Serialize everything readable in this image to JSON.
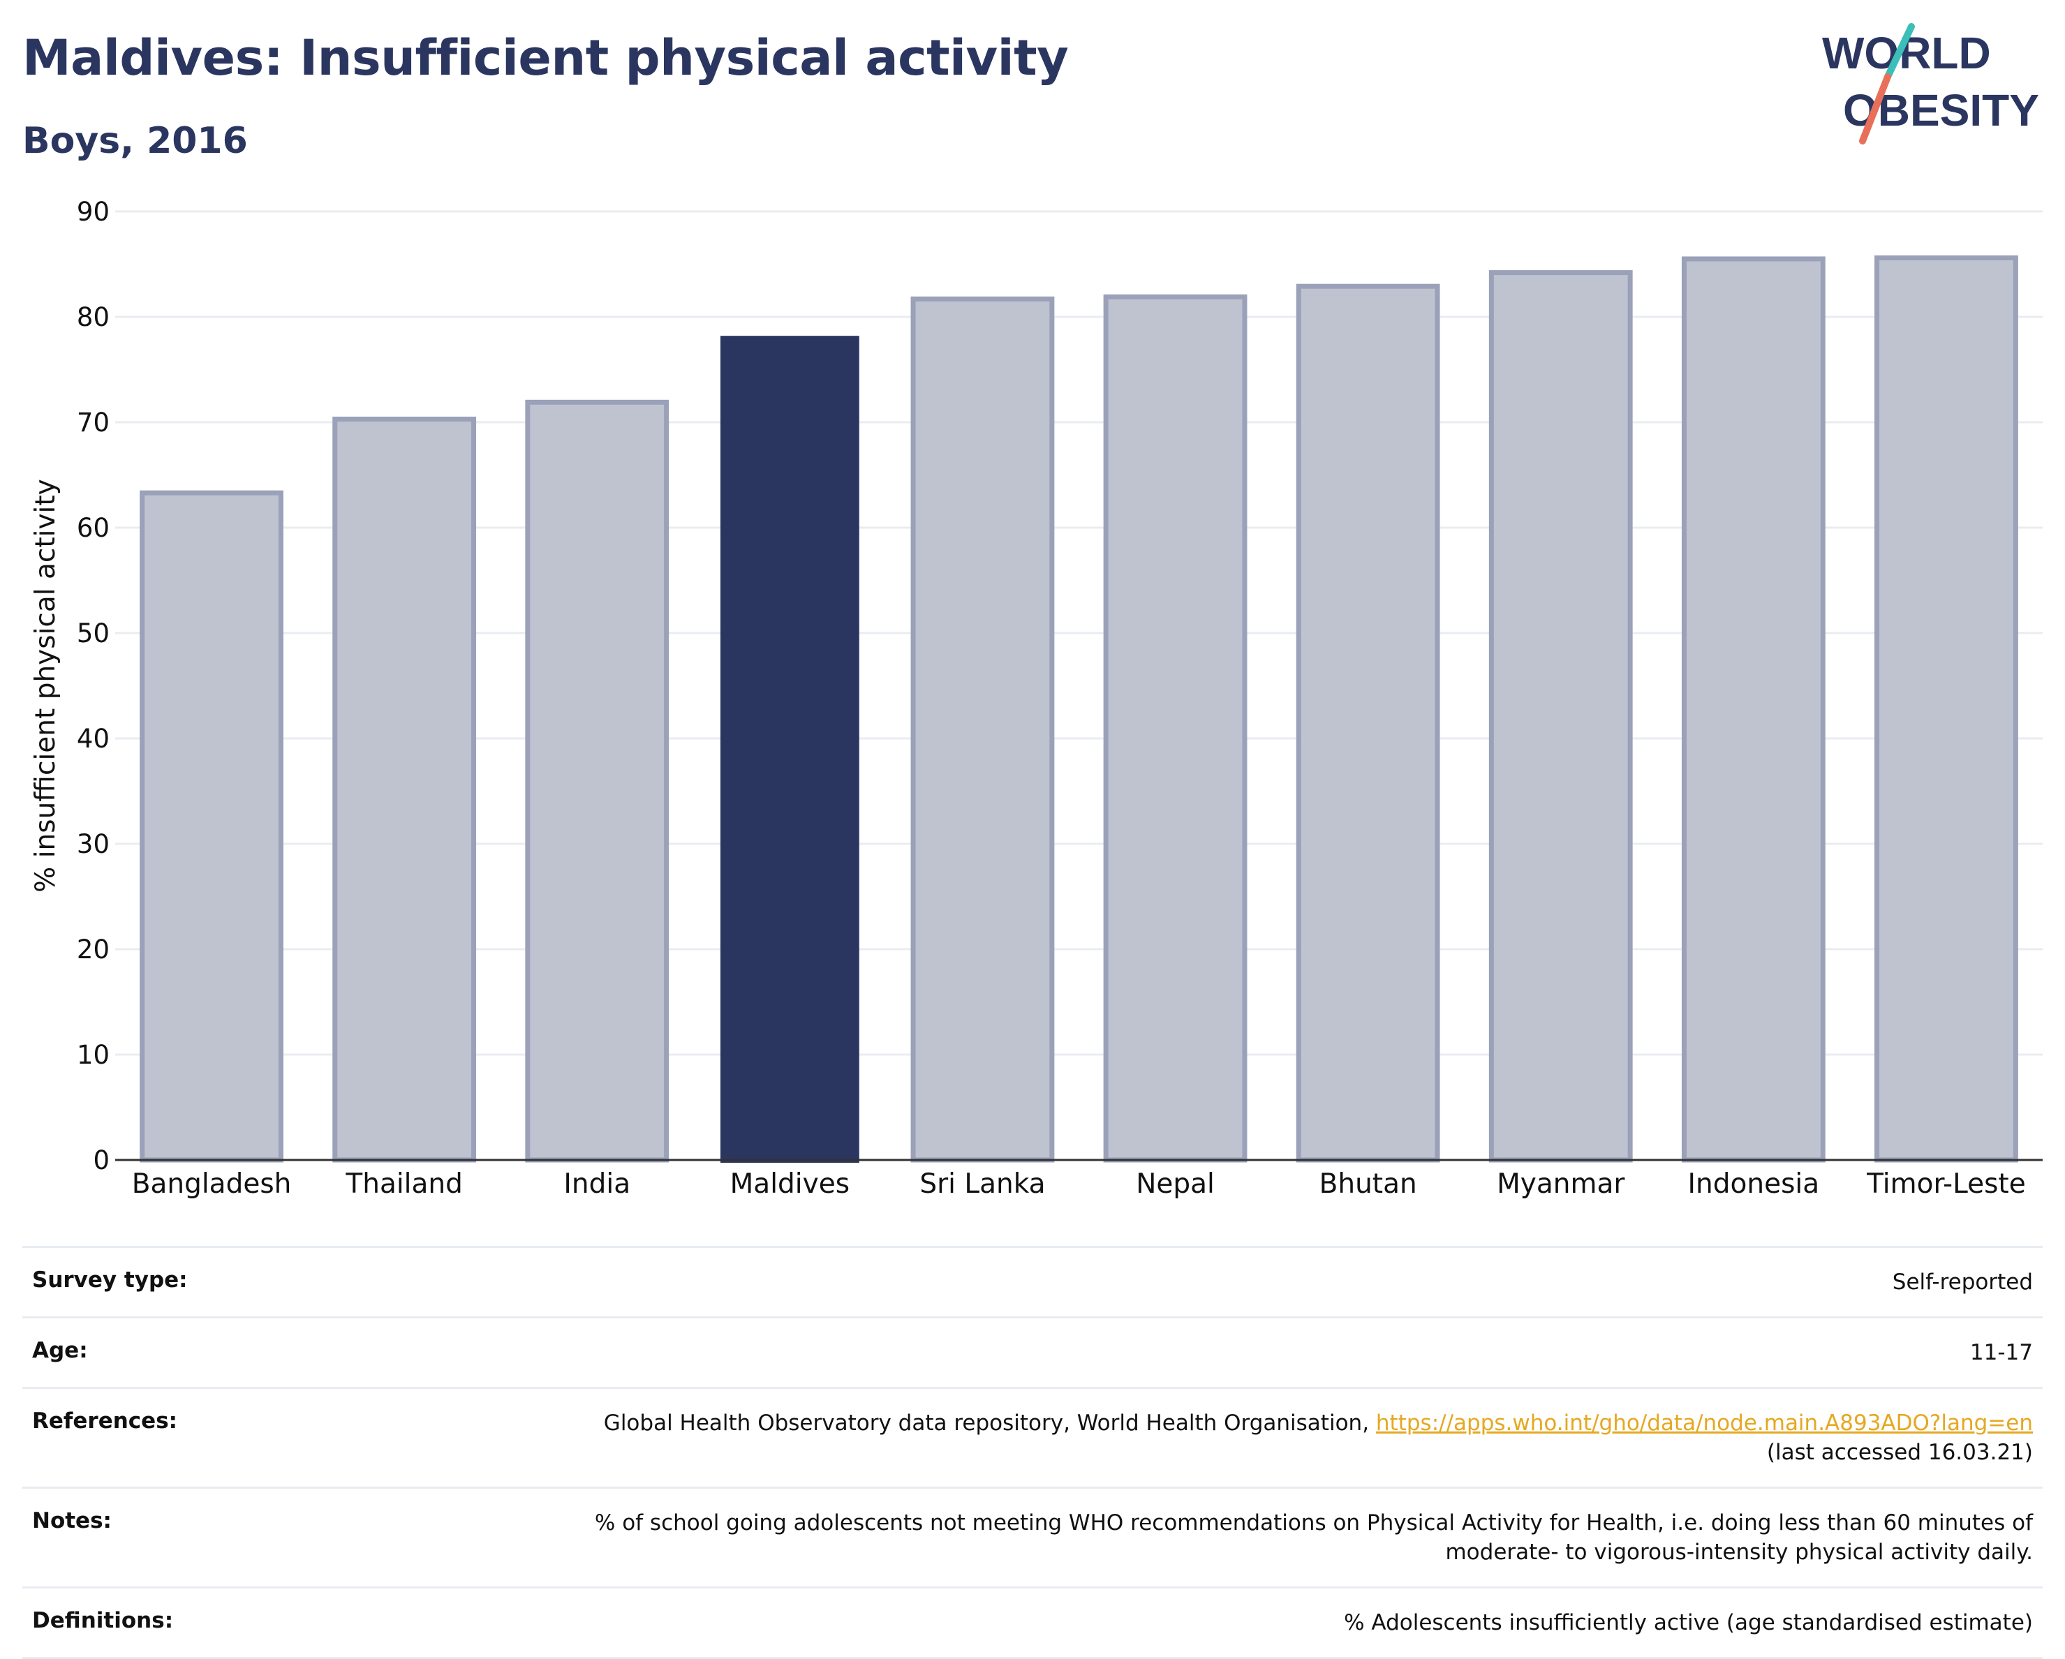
{
  "header": {
    "title": "Maldives: Insufficient physical activity",
    "subtitle": "Boys, 2016"
  },
  "logo": {
    "line1": "WORLD",
    "line2": "OBESITY",
    "colors": {
      "text": "#2b3660",
      "slash_teal": "#3bbfb8",
      "slash_coral": "#e8705a"
    }
  },
  "chart_data": {
    "type": "bar",
    "ylabel": "% insufficient physical activity",
    "xlabel": "",
    "ylim": [
      0,
      90
    ],
    "yticks": [
      0,
      10,
      20,
      30,
      40,
      50,
      60,
      70,
      80,
      90
    ],
    "grid": true,
    "categories": [
      "Bangladesh",
      "Thailand",
      "India",
      "Maldives",
      "Sri Lanka",
      "Nepal",
      "Bhutan",
      "Myanmar",
      "Indonesia",
      "Timor-Leste"
    ],
    "values": [
      63.3,
      70.3,
      71.9,
      78.2,
      81.7,
      81.9,
      82.9,
      84.2,
      85.5,
      85.6
    ],
    "highlight": "Maldives",
    "colors": {
      "bar": "#bfc3d0",
      "bar_edge": "#9aa1b8",
      "highlight": "#2b3660",
      "grid": "#e9ecf1",
      "axis": "#333333"
    }
  },
  "info": {
    "rows": [
      {
        "label": "Survey type:",
        "value": "Self-reported"
      },
      {
        "label": "Age:",
        "value": "11-17"
      },
      {
        "label": "References:",
        "value": "Global Health Observatory data repository, World Health Organisation, ",
        "link": "https://apps.who.int/gho/data/node.main.A893ADO?lang=en",
        "value2": "(last accessed 16.03.21)"
      },
      {
        "label": "Notes:",
        "value": "% of school going adolescents not meeting WHO recommendations on Physical Activity for Health, i.e. doing less than 60 minutes of",
        "value2": "moderate- to vigorous-intensity physical activity daily."
      },
      {
        "label": "Definitions:",
        "value": "% Adolescents insufficiently active (age standardised estimate)"
      }
    ]
  }
}
